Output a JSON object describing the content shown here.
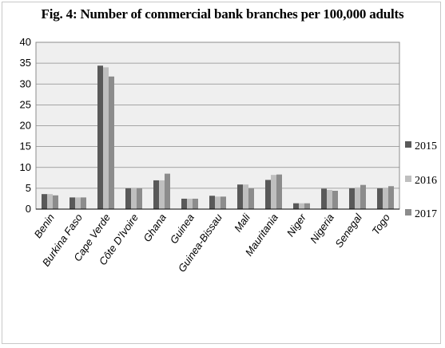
{
  "chart_data": {
    "type": "bar",
    "title": "Fig. 4: Number of commercial bank branches per 100,000 adults",
    "categories": [
      "Benin",
      "Burkina Faso",
      "Cape Verde",
      "Côte D'Ivoire",
      "Ghana",
      "Guinea",
      "Guinea-Bissau",
      "Mali",
      "Mauritania",
      "Niger",
      "Nigeria",
      "Senegal",
      "Togo"
    ],
    "series": [
      {
        "name": "2015",
        "color": "#595959",
        "values": [
          3.6,
          2.8,
          34.4,
          5.0,
          6.9,
          2.5,
          3.2,
          5.9,
          7.0,
          1.4,
          4.9,
          5.0,
          5.0
        ]
      },
      {
        "name": "2016",
        "color": "#bfbfbf",
        "values": [
          3.6,
          2.8,
          34.0,
          5.0,
          6.9,
          2.5,
          3.0,
          5.9,
          8.2,
          1.4,
          4.6,
          5.2,
          5.0
        ]
      },
      {
        "name": "2017",
        "color": "#8c8c8c",
        "values": [
          3.3,
          2.8,
          31.8,
          5.0,
          8.5,
          2.5,
          3.0,
          5.0,
          8.3,
          1.4,
          4.4,
          5.8,
          5.5
        ]
      }
    ],
    "yticks": [
      0,
      5,
      10,
      15,
      20,
      25,
      30,
      35,
      40
    ],
    "ylim": [
      0,
      40
    ],
    "grid": true,
    "legend": "right"
  }
}
